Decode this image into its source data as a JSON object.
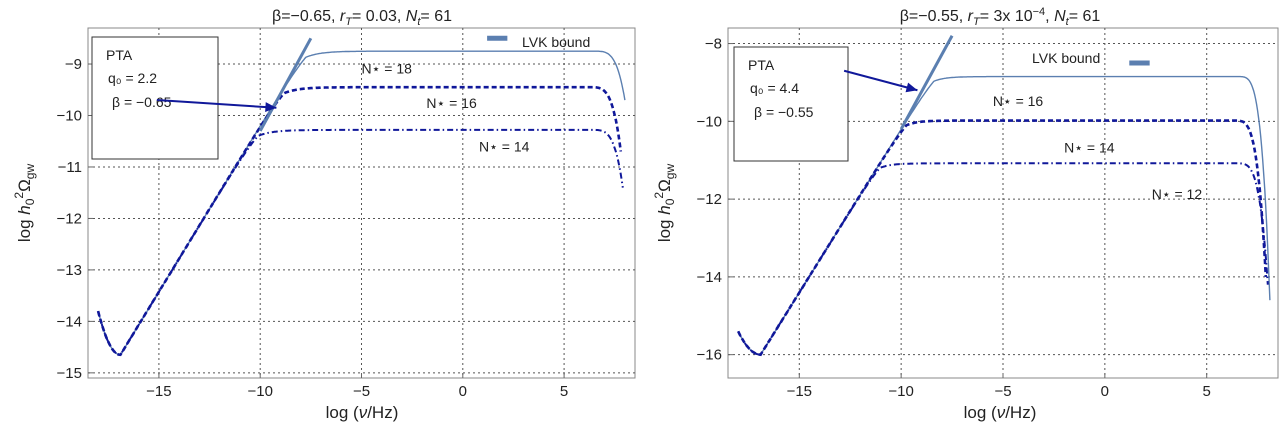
{
  "chart_data": [
    {
      "type": "line",
      "title": "β=−0.65, r_T= 0.03, N_t= 61",
      "title_parts": {
        "beta": "β=−0.65, ",
        "rT": "r",
        "rT_sub": "T",
        "rT_val": "= 0.03, ",
        "Nt": "N",
        "Nt_sub": "t",
        "Nt_val": "= 61"
      },
      "xlabel": "log (ν/Hz)",
      "ylabel": "log h₀²Ω_gw",
      "xlim": [
        -18.5,
        8.5
      ],
      "ylim": [
        -15.1,
        -8.3
      ],
      "xticks": [
        -15,
        -10,
        -5,
        0,
        5
      ],
      "xtick_labels": [
        "−15",
        "−10",
        "−5",
        "0",
        "5"
      ],
      "yticks": [
        -15,
        -14,
        -13,
        -12,
        -11,
        -10,
        -9
      ],
      "ytick_labels": [
        "−15",
        "−14",
        "−13",
        "−12",
        "−11",
        "−10",
        "−9"
      ],
      "grid": true,
      "pta_box": {
        "line1": "PTA",
        "line2": "q₀ = 2.2",
        "line3": "β = −0.65"
      },
      "lvk_label": "LVK bound",
      "lvk_segment": {
        "x": [
          1.2,
          2.2
        ],
        "y": -8.5
      },
      "pta_line": {
        "x": [
          -10,
          -7.5
        ],
        "y": [
          -10.3,
          -8.5
        ]
      },
      "series": [
        {
          "name": "N⋆ = 18",
          "style": "solid",
          "plateau": -8.75,
          "knee": -9.6,
          "end_x": 8.0,
          "end_y": -9.7,
          "label_x": -5.0,
          "label_y": -9.18
        },
        {
          "name": "N⋆ = 16",
          "style": "dashed",
          "plateau": -9.45,
          "knee": -10.0,
          "end_x": 7.8,
          "end_y": -10.7,
          "label_x": -1.8,
          "label_y": -9.85
        },
        {
          "name": "N⋆ = 14",
          "style": "dashdot",
          "plateau": -10.28,
          "knee": -10.2,
          "end_x": 7.9,
          "end_y": -11.4,
          "label_x": 0.8,
          "label_y": -10.7
        }
      ],
      "common": {
        "start": [
          -18,
          -13.8
        ],
        "min": [
          -16.9,
          -14.65
        ],
        "slope_to": [
          -10,
          -10.2
        ]
      }
    },
    {
      "type": "line",
      "title": "β=−0.55, r_T= 3x 10^−4, N_t= 61",
      "title_parts": {
        "beta": "β=−0.55, ",
        "rT": "r",
        "rT_sub": "T",
        "rT_val": "= 3x 10",
        "rT_exp": "−4",
        "rT_end": ", ",
        "Nt": "N",
        "Nt_sub": "t",
        "Nt_val": "= 61"
      },
      "xlabel": "log (ν/Hz)",
      "ylabel": "log h₀²Ω_gw",
      "xlim": [
        -18.5,
        8.5
      ],
      "ylim": [
        -16.6,
        -7.6
      ],
      "xticks": [
        -15,
        -10,
        -5,
        0,
        5
      ],
      "xtick_labels": [
        "−15",
        "−10",
        "−5",
        "0",
        "5"
      ],
      "yticks": [
        -16,
        -14,
        -12,
        -10,
        -8
      ],
      "ytick_labels": [
        "−16",
        "−14",
        "−12",
        "−10",
        "−8"
      ],
      "grid": true,
      "pta_box": {
        "line1": "PTA",
        "line2": "q₀ = 4.4",
        "line3": "β = −0.55"
      },
      "lvk_label": "LVK bound",
      "lvk_segment": {
        "x": [
          1.2,
          2.2
        ],
        "y": -8.5
      },
      "pta_line": {
        "x": [
          -10,
          -7.5
        ],
        "y": [
          -10.2,
          -7.8
        ]
      },
      "series": [
        {
          "name": "N⋆ = 16",
          "style": "solid",
          "plateau": -8.85,
          "knee": -9.9,
          "end_x": 8.1,
          "end_y": -14.6,
          "label_x": -5.5,
          "label_y": -9.6
        },
        {
          "name": "N⋆ = 14",
          "style": "dashed",
          "plateau": -9.98,
          "knee": -10.0,
          "end_x": 7.9,
          "end_y": -14.0,
          "label_x": -2.0,
          "label_y": -10.8
        },
        {
          "name": "N⋆ = 12",
          "style": "dashdot",
          "plateau": -11.08,
          "knee": -10.1,
          "end_x": 8.0,
          "end_y": -14.2,
          "label_x": 2.3,
          "label_y": -12.0
        }
      ],
      "common": {
        "start": [
          -18,
          -15.4
        ],
        "min": [
          -16.9,
          -16.0
        ],
        "slope_to": [
          -10,
          -10.2
        ]
      }
    }
  ]
}
